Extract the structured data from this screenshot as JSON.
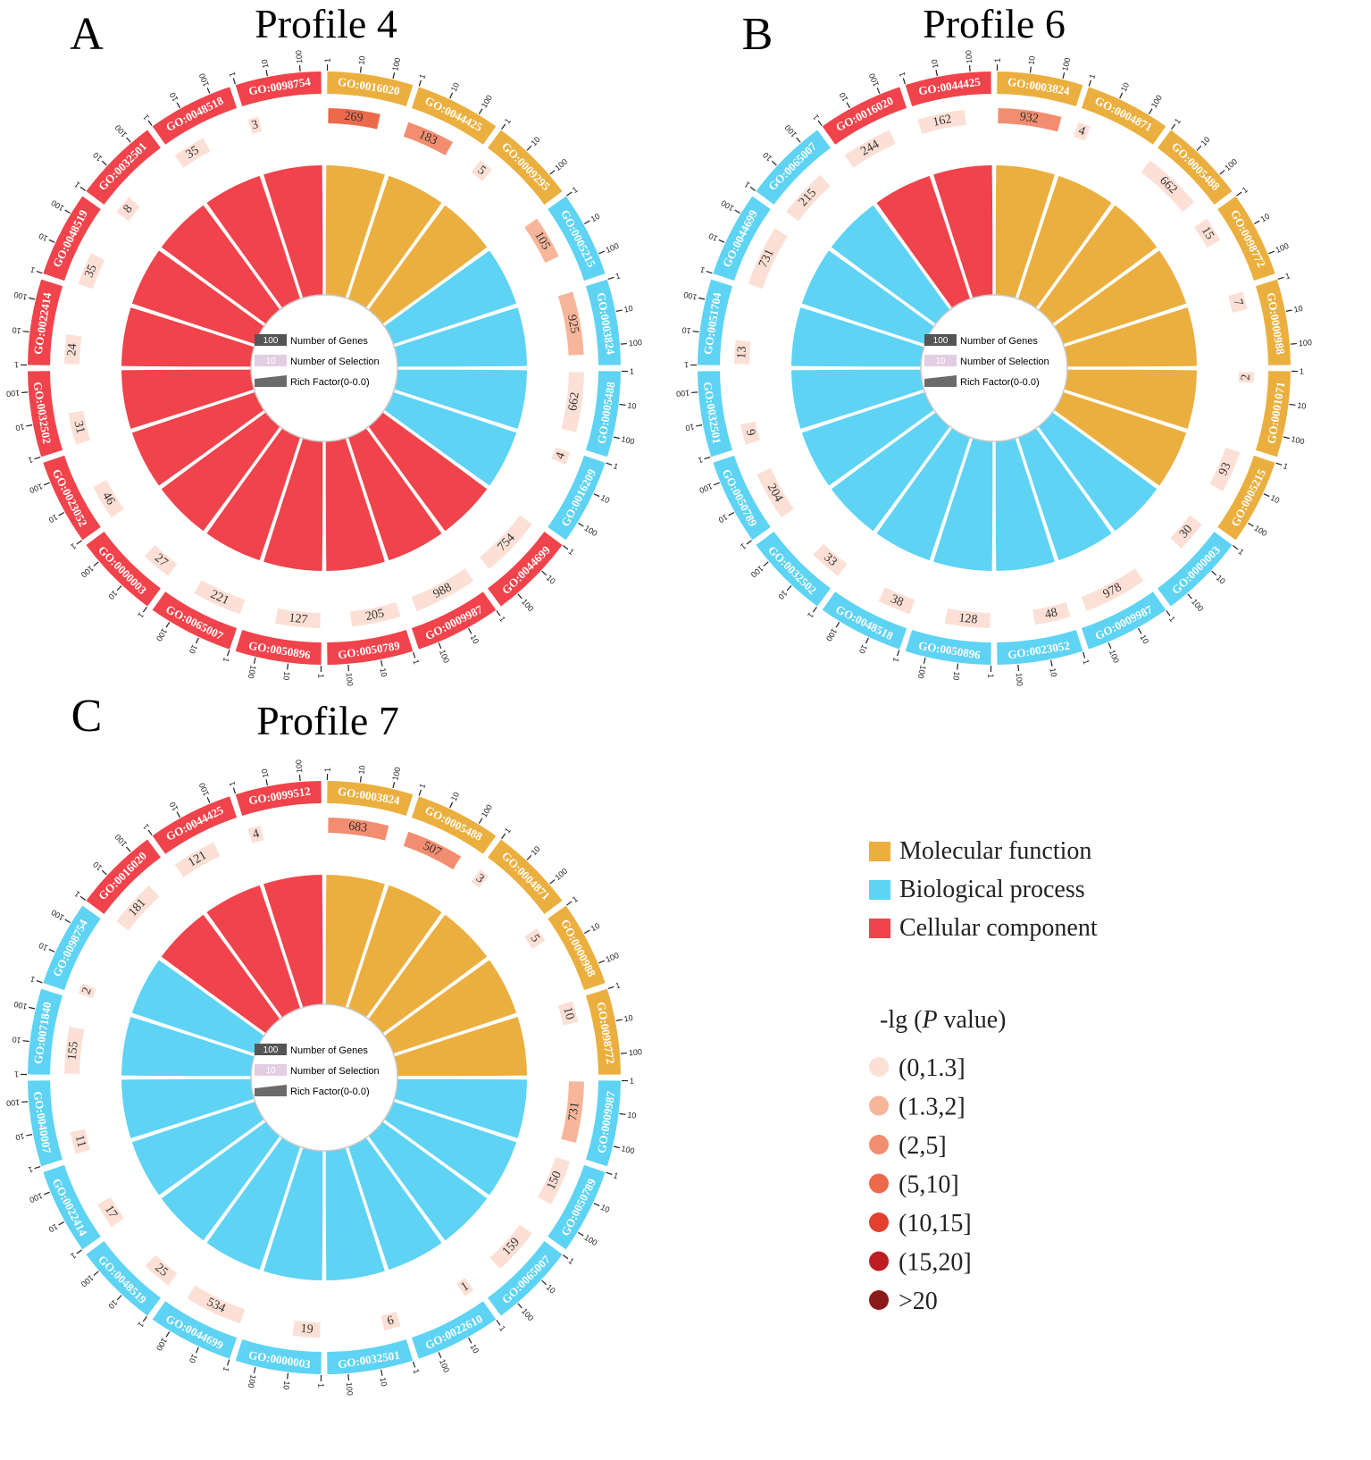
{
  "colors": {
    "Molecular function": "#EBAF3F",
    "Biological process": "#5ED3F3",
    "Cellular component": "#F0434B",
    "pvalue": [
      "#FCE0D6",
      "#F7B59A",
      "#F28D6F",
      "#EC6A4B",
      "#E3402D",
      "#BE1E23",
      "#8B1A1A"
    ]
  },
  "center_legend": {
    "genes_sample": "100",
    "genes_label": "Number of Genes",
    "selection_sample": "10",
    "selection_label": "Number of Selection",
    "rich_label": "Rich Factor(0-0.0)"
  },
  "tick_labels": [
    "1",
    "10",
    "100"
  ],
  "legend": {
    "categories": [
      "Molecular function",
      "Biological process",
      "Cellular component"
    ],
    "pvalue_title_prefix": "-lg (",
    "pvalue_title_italic": "P",
    "pvalue_title_suffix": " value)",
    "pvalue_classes": [
      "(0,1.3]",
      "(1.3,2]",
      "(2,5]",
      "(5,10]",
      "(10,15]",
      "(15,20]",
      ">20"
    ]
  },
  "chart_data": [
    {
      "type": "circular-bar",
      "panel": "A",
      "title": "Profile 4",
      "items": [
        {
          "go": "GO:0016020",
          "category": "Molecular function",
          "selection": 269,
          "p_class": 3
        },
        {
          "go": "GO:0044425",
          "category": "Molecular function",
          "selection": 183,
          "p_class": 2
        },
        {
          "go": "GO:0009295",
          "category": "Molecular function",
          "selection": 5,
          "p_class": 0
        },
        {
          "go": "GO:0005215",
          "category": "Biological process",
          "selection": 105,
          "p_class": 1
        },
        {
          "go": "GO:0003824",
          "category": "Biological process",
          "selection": 925,
          "p_class": 1
        },
        {
          "go": "GO:0005488",
          "category": "Biological process",
          "selection": 662,
          "p_class": 0
        },
        {
          "go": "GO:0016209",
          "category": "Biological process",
          "selection": 4,
          "p_class": 0
        },
        {
          "go": "GO:0044699",
          "category": "Cellular component",
          "selection": 754,
          "p_class": 0
        },
        {
          "go": "GO:0009987",
          "category": "Cellular component",
          "selection": 988,
          "p_class": 0
        },
        {
          "go": "GO:0050789",
          "category": "Cellular component",
          "selection": 205,
          "p_class": 0
        },
        {
          "go": "GO:0050896",
          "category": "Cellular component",
          "selection": 127,
          "p_class": 0
        },
        {
          "go": "GO:0065007",
          "category": "Cellular component",
          "selection": 221,
          "p_class": 0
        },
        {
          "go": "GO:0000003",
          "category": "Cellular component",
          "selection": 27,
          "p_class": 0
        },
        {
          "go": "GO:0023052",
          "category": "Cellular component",
          "selection": 46,
          "p_class": 0
        },
        {
          "go": "GO:0032502",
          "category": "Cellular component",
          "selection": 31,
          "p_class": 0
        },
        {
          "go": "GO:0022414",
          "category": "Cellular component",
          "selection": 24,
          "p_class": 0
        },
        {
          "go": "GO:0048519",
          "category": "Cellular component",
          "selection": 35,
          "p_class": 0
        },
        {
          "go": "GO:0032501",
          "category": "Cellular component",
          "selection": 8,
          "p_class": 0
        },
        {
          "go": "GO:0048518",
          "category": "Cellular component",
          "selection": 35,
          "p_class": 0
        },
        {
          "go": "GO:0098754",
          "category": "Cellular component",
          "selection": 3,
          "p_class": 0
        }
      ]
    },
    {
      "type": "circular-bar",
      "panel": "B",
      "title": "Profile 6",
      "items": [
        {
          "go": "GO:0003824",
          "category": "Molecular function",
          "selection": 932,
          "p_class": 2
        },
        {
          "go": "GO:0004871",
          "category": "Molecular function",
          "selection": 4,
          "p_class": 0
        },
        {
          "go": "GO:0005488",
          "category": "Molecular function",
          "selection": 662,
          "p_class": 0
        },
        {
          "go": "GO:0098772",
          "category": "Molecular function",
          "selection": 15,
          "p_class": 0
        },
        {
          "go": "GO:0000988",
          "category": "Molecular function",
          "selection": 7,
          "p_class": 0
        },
        {
          "go": "GO:0001071",
          "category": "Molecular function",
          "selection": 2,
          "p_class": 0
        },
        {
          "go": "GO:0005215",
          "category": "Molecular function",
          "selection": 93,
          "p_class": 0
        },
        {
          "go": "GO:0000003",
          "category": "Biological process",
          "selection": 30,
          "p_class": 0
        },
        {
          "go": "GO:0009987",
          "category": "Biological process",
          "selection": 978,
          "p_class": 0
        },
        {
          "go": "GO:0023052",
          "category": "Biological process",
          "selection": 48,
          "p_class": 0
        },
        {
          "go": "GO:0050896",
          "category": "Biological process",
          "selection": 128,
          "p_class": 0
        },
        {
          "go": "GO:0048518",
          "category": "Biological process",
          "selection": 38,
          "p_class": 0
        },
        {
          "go": "GO:0032502",
          "category": "Biological process",
          "selection": 33,
          "p_class": 0
        },
        {
          "go": "GO:0050789",
          "category": "Biological process",
          "selection": 204,
          "p_class": 0
        },
        {
          "go": "GO:0032501",
          "category": "Biological process",
          "selection": 9,
          "p_class": 0
        },
        {
          "go": "GO:0051704",
          "category": "Biological process",
          "selection": 13,
          "p_class": 0
        },
        {
          "go": "GO:0044699",
          "category": "Biological process",
          "selection": 731,
          "p_class": 0
        },
        {
          "go": "GO:0065007",
          "category": "Biological process",
          "selection": 215,
          "p_class": 0
        },
        {
          "go": "GO:0016020",
          "category": "Cellular component",
          "selection": 244,
          "p_class": 0
        },
        {
          "go": "GO:0044425",
          "category": "Cellular component",
          "selection": 162,
          "p_class": 0
        }
      ]
    },
    {
      "type": "circular-bar",
      "panel": "C",
      "title": "Profile 7",
      "items": [
        {
          "go": "GO:0003824",
          "category": "Molecular function",
          "selection": 683,
          "p_class": 2
        },
        {
          "go": "GO:0005488",
          "category": "Molecular function",
          "selection": 507,
          "p_class": 2
        },
        {
          "go": "GO:0004871",
          "category": "Molecular function",
          "selection": 3,
          "p_class": 0
        },
        {
          "go": "GO:0000988",
          "category": "Molecular function",
          "selection": 5,
          "p_class": 0
        },
        {
          "go": "GO:0098772",
          "category": "Molecular function",
          "selection": 10,
          "p_class": 0
        },
        {
          "go": "GO:0009987",
          "category": "Biological process",
          "selection": 731,
          "p_class": 1
        },
        {
          "go": "GO:0050789",
          "category": "Biological process",
          "selection": 150,
          "p_class": 0
        },
        {
          "go": "GO:0065007",
          "category": "Biological process",
          "selection": 159,
          "p_class": 0
        },
        {
          "go": "GO:0022610",
          "category": "Biological process",
          "selection": 1,
          "p_class": 0
        },
        {
          "go": "GO:0032501",
          "category": "Biological process",
          "selection": 6,
          "p_class": 0
        },
        {
          "go": "GO:0000003",
          "category": "Biological process",
          "selection": 19,
          "p_class": 0
        },
        {
          "go": "GO:0044699",
          "category": "Biological process",
          "selection": 534,
          "p_class": 0
        },
        {
          "go": "GO:0048519",
          "category": "Biological process",
          "selection": 25,
          "p_class": 0
        },
        {
          "go": "GO:0022414",
          "category": "Biological process",
          "selection": 17,
          "p_class": 0
        },
        {
          "go": "GO:0040007",
          "category": "Biological process",
          "selection": 11,
          "p_class": 0
        },
        {
          "go": "GO:0071840",
          "category": "Biological process",
          "selection": 155,
          "p_class": 0
        },
        {
          "go": "GO:0098754",
          "category": "Biological process",
          "selection": 2,
          "p_class": 0
        },
        {
          "go": "GO:0016020",
          "category": "Cellular component",
          "selection": 181,
          "p_class": 0
        },
        {
          "go": "GO:0044425",
          "category": "Cellular component",
          "selection": 121,
          "p_class": 0
        },
        {
          "go": "GO:0099512",
          "category": "Cellular component",
          "selection": 4,
          "p_class": 0
        }
      ]
    }
  ]
}
